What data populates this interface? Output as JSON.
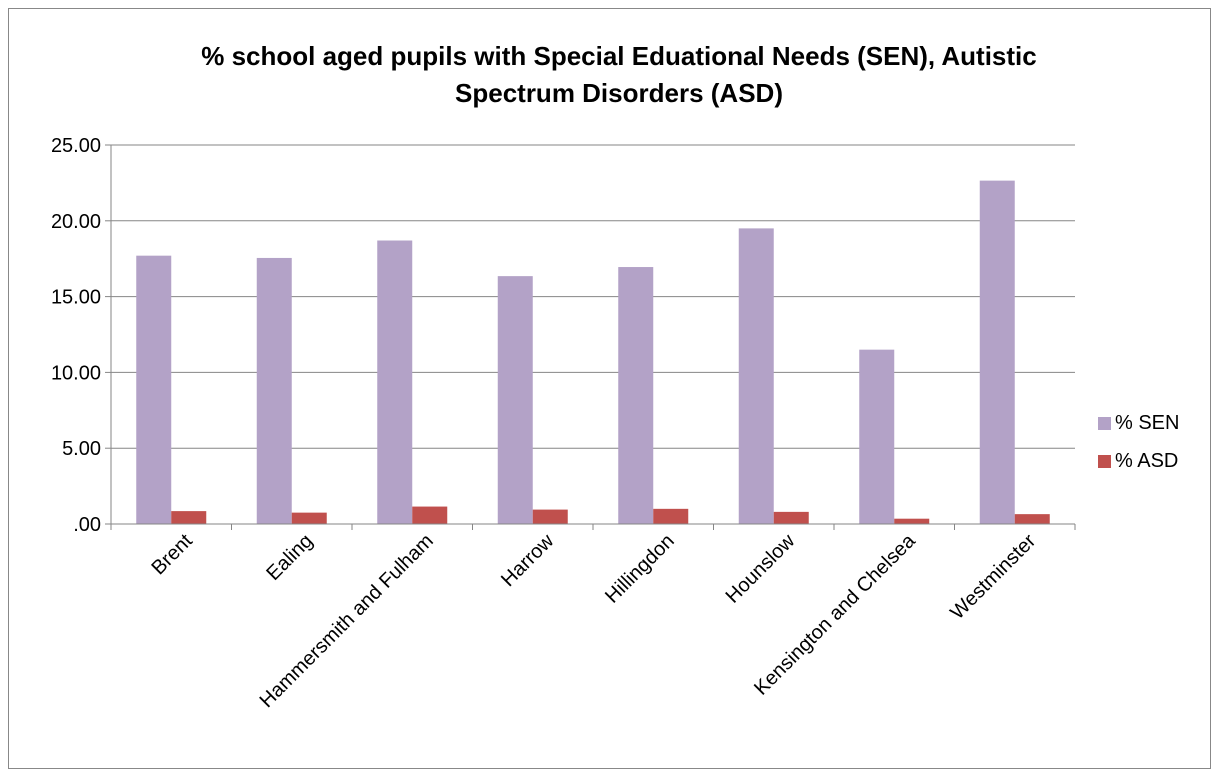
{
  "chart_data": {
    "type": "bar",
    "title_lines": [
      "% school aged pupils with Special Eduational Needs (SEN), Autistic",
      "Spectrum Disorders (ASD)"
    ],
    "categories": [
      "Brent",
      "Ealing",
      "Hammersmith and Fulham",
      "Harrow",
      "Hillingdon",
      "Hounslow",
      "Kensington and Chelsea",
      "Westminster"
    ],
    "series": [
      {
        "name": "% SEN",
        "color": "#b3a2c7",
        "values": [
          17.7,
          17.55,
          18.7,
          16.35,
          16.95,
          19.5,
          11.5,
          22.65
        ]
      },
      {
        "name": "% ASD",
        "color": "#c0504d",
        "values": [
          0.85,
          0.75,
          1.15,
          0.95,
          1.0,
          0.8,
          0.35,
          0.65
        ]
      }
    ],
    "y_ticks": [
      {
        "value": 0,
        "label": ".00"
      },
      {
        "value": 5,
        "label": "5.00"
      },
      {
        "value": 10,
        "label": "10.00"
      },
      {
        "value": 15,
        "label": "15.00"
      },
      {
        "value": 20,
        "label": "20.00"
      },
      {
        "value": 25,
        "label": "25.00"
      }
    ],
    "ylim": [
      0,
      25
    ],
    "grid": true,
    "legend_position": "right"
  }
}
